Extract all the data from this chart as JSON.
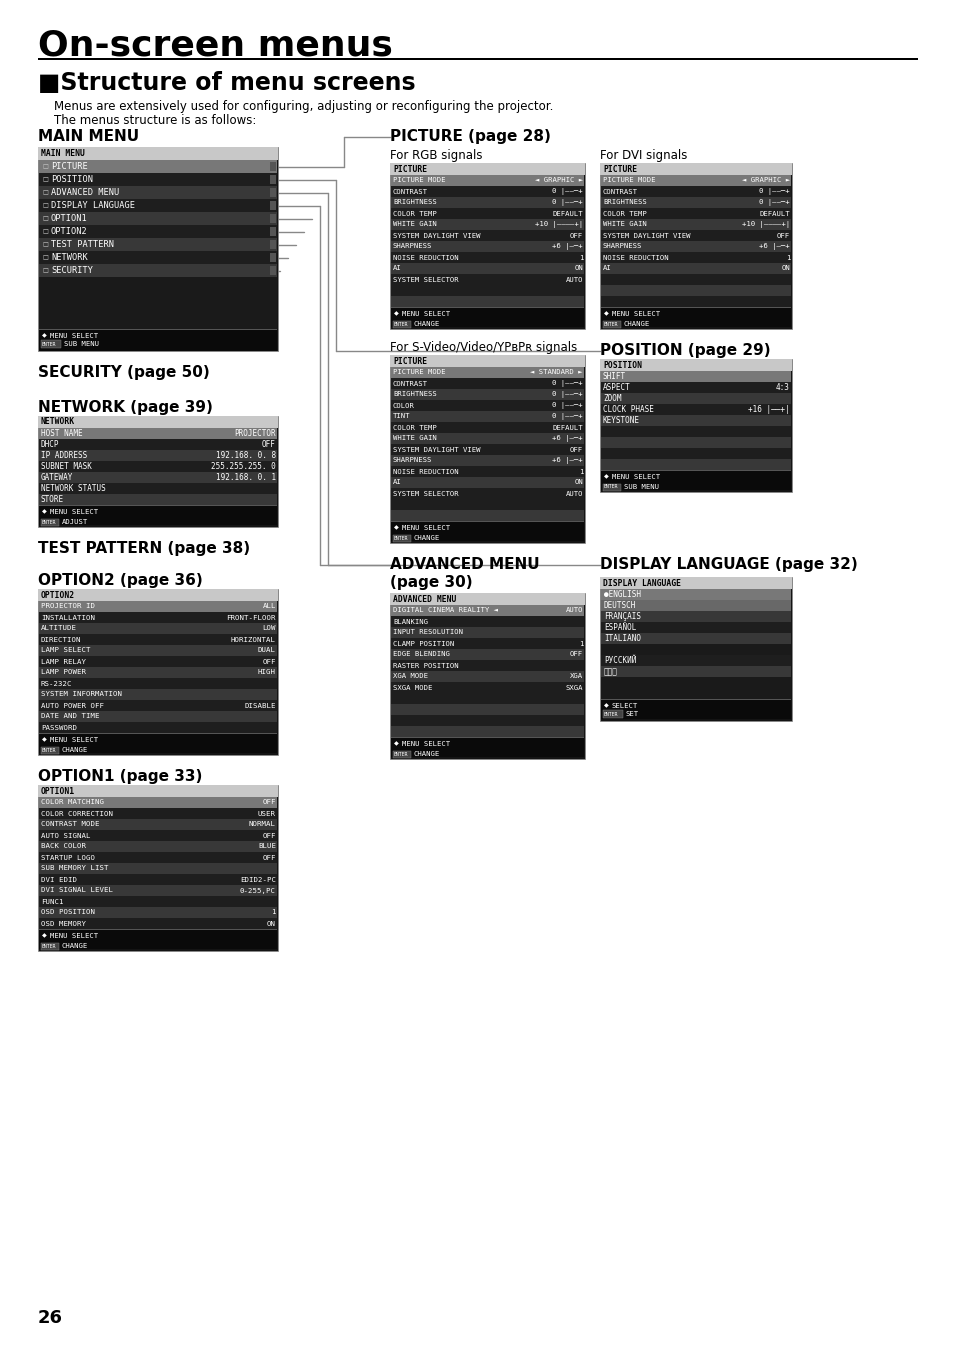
{
  "page_title": "On-screen menus",
  "section_square": "■",
  "section_title": "Structure of menu screens",
  "desc1": "Menus are extensively used for configuring, adjusting or reconfiguring the projector.",
  "desc2": "The menus structure is as follows:",
  "page_number": "26",
  "main_menu_label": "MAIN MENU",
  "main_menu_items": [
    "PICTURE",
    "POSITION",
    "ADVANCED MENU",
    "DISPLAY LANGUAGE",
    "OPTION1",
    "OPTION2",
    "TEST PATTERN",
    "NETWORK",
    "SECURITY"
  ],
  "security_label": "SECURITY (page 50)",
  "network_label": "NETWORK (page 39)",
  "testpattern_label": "TEST PATTERN (page 38)",
  "option2_label": "OPTION2 (page 36)",
  "option1_label": "OPTION1 (page 33)",
  "picture_label": "PICTURE (page 28)",
  "position_label": "POSITION (page 29)",
  "advmenu_label1": "ADVANCED MENU",
  "advmenu_label2": "(page 30)",
  "displaylang_label": "DISPLAY LANGUAGE (page 32)",
  "for_rgb": "For RGB signals",
  "for_dvi": "For DVI signals",
  "for_svideo": "For S-Video/Video/YPʙPʀ signals",
  "bg_color": "#ffffff",
  "header_bg": "#c8c8c8",
  "row_dark": "#1e1e1e",
  "row_medium": "#383838",
  "row_selected": "#787878",
  "row_lighter": "#505050",
  "box_bg": "#141414",
  "box_border": "#888888",
  "footer_bg": "#0a0a0a",
  "text_white": "#ffffff",
  "text_black": "#000000",
  "line_color": "#888888"
}
